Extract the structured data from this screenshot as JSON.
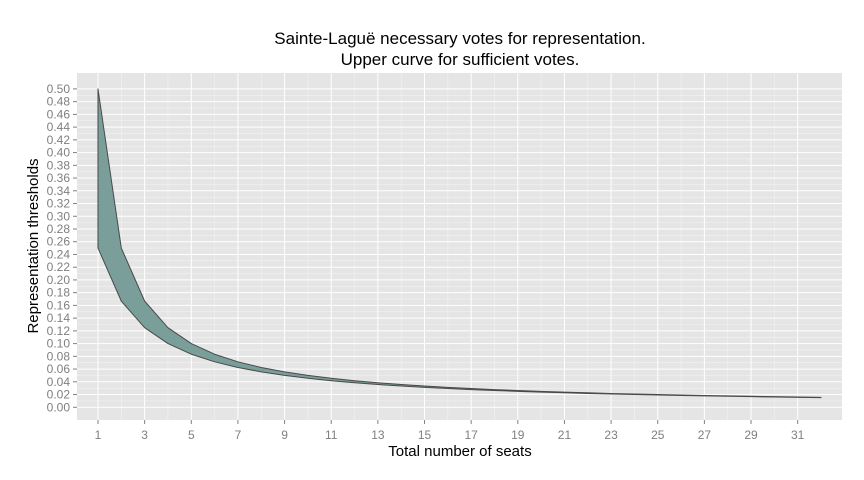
{
  "chart_data": {
    "type": "area",
    "title_lines": [
      "Sainte-Laguë necessary votes for representation.",
      "Upper curve for sufficient votes."
    ],
    "xlabel": "Total number of seats",
    "ylabel": "Representation thresholds",
    "xlim": [
      0.1,
      32.9
    ],
    "ylim": [
      -0.02,
      0.525
    ],
    "x_ticks": [
      1,
      3,
      5,
      7,
      9,
      11,
      13,
      15,
      17,
      19,
      21,
      23,
      25,
      27,
      29,
      31
    ],
    "y_ticks": [
      0.0,
      0.02,
      0.04,
      0.06,
      0.08,
      0.1,
      0.12,
      0.14,
      0.16,
      0.18,
      0.2,
      0.22,
      0.24,
      0.26,
      0.28,
      0.3,
      0.32,
      0.34,
      0.36,
      0.38,
      0.4,
      0.42,
      0.44,
      0.46,
      0.48,
      0.5
    ],
    "x": [
      1,
      2,
      3,
      4,
      5,
      6,
      7,
      8,
      9,
      10,
      11,
      12,
      13,
      14,
      15,
      16,
      17,
      18,
      19,
      20,
      21,
      22,
      23,
      24,
      25,
      26,
      27,
      28,
      29,
      30,
      31,
      32
    ],
    "series": [
      {
        "role": "upper",
        "values": [
          0.5,
          0.25,
          0.1667,
          0.125,
          0.1,
          0.0833,
          0.0714,
          0.0625,
          0.0556,
          0.05,
          0.0455,
          0.0417,
          0.0385,
          0.0357,
          0.0333,
          0.0312,
          0.0294,
          0.0278,
          0.0263,
          0.025,
          0.0238,
          0.0227,
          0.0217,
          0.0208,
          0.02,
          0.0192,
          0.0185,
          0.0179,
          0.0172,
          0.0167,
          0.0161,
          0.0156
        ]
      },
      {
        "role": "lower",
        "values": [
          0.25,
          0.1667,
          0.125,
          0.1,
          0.0833,
          0.0714,
          0.0625,
          0.0556,
          0.05,
          0.0455,
          0.0417,
          0.0385,
          0.0357,
          0.0333,
          0.0312,
          0.0294,
          0.0278,
          0.0263,
          0.025,
          0.0238,
          0.0227,
          0.0217,
          0.0208,
          0.02,
          0.0192,
          0.0185,
          0.0179,
          0.0172,
          0.0167,
          0.0161,
          0.0156,
          0.0152
        ]
      }
    ],
    "colors": {
      "panel_background": "#e5e5e5",
      "grid_major": "#ffffff",
      "grid_minor": "#f2f2f2",
      "ribbon_fill": "#7a9e9a",
      "ribbon_outline": "#4a4a4a"
    },
    "grid": true,
    "legend": "none"
  }
}
